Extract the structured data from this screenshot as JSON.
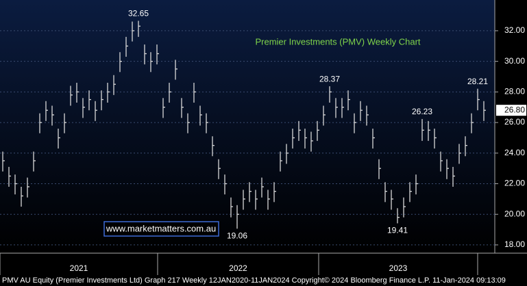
{
  "chart_data": {
    "type": "hlc",
    "title": "Premier Investments (PMV) Weekly Chart",
    "watermark": "www.marketmatters.com.au",
    "footer": "PMV AU Equity (Premier Investments Ltd) Graph 217  Weekly 12JAN2020-11JAN2024 Copyright© 2024 Bloomberg Finance L.P. 11-Jan-2024 09:13:09",
    "x_labels": [
      "2021",
      "2022",
      "2023"
    ],
    "color": "#d9d9d9",
    "ylim": [
      17.46,
      34.01
    ],
    "yticks": [
      {
        "value": 18,
        "label": "18.00"
      },
      {
        "value": 20,
        "label": "20.00"
      },
      {
        "value": 22,
        "label": "22.00"
      },
      {
        "value": 24,
        "label": "24.00"
      },
      {
        "value": 26,
        "label": "26.00"
      },
      {
        "value": 28,
        "label": "28.00"
      },
      {
        "value": 30,
        "label": "30.00"
      },
      {
        "value": 32,
        "label": "32.00"
      }
    ],
    "grid": true,
    "last_price": {
      "value": 26.8,
      "label": "26.80"
    },
    "annotations": [
      32.65,
      19.06,
      28.37,
      19.41,
      26.23,
      28.21
    ],
    "high": [
      24.1,
      23.1,
      22.6,
      21.8,
      22.4,
      24.1,
      26.6,
      27.4,
      27.1,
      25.6,
      26.6,
      28.4,
      28.6,
      27.6,
      28.1,
      27.4,
      28.1,
      28.6,
      29.1,
      30.6,
      31.6,
      32.6,
      32.65,
      31.1,
      30.6,
      31.1,
      27.6,
      28.6,
      30.1,
      27.6,
      26.6,
      28.6,
      27.1,
      26.6,
      25.1,
      23.6,
      22.6,
      21.1,
      20.6,
      21.6,
      22.1,
      21.6,
      22.4,
      21.6,
      22.1,
      24.1,
      24.6,
      25.6,
      26.1,
      25.6,
      25.4,
      26.1,
      27.1,
      28.37,
      27.6,
      27.6,
      28.1,
      26.6,
      27.4,
      27.1,
      25.6,
      23.6,
      22.1,
      21.6,
      20.4,
      21.1,
      22.1,
      22.6,
      26.23,
      26.1,
      25.6,
      24.1,
      23.6,
      23.1,
      24.6,
      25.1,
      26.6,
      28.21,
      27.4
    ],
    "low": [
      22.8,
      21.8,
      21.3,
      20.5,
      21.1,
      22.8,
      25.3,
      26.1,
      25.8,
      24.3,
      25.3,
      27.1,
      27.3,
      26.3,
      26.8,
      26.1,
      26.8,
      27.3,
      27.8,
      29.3,
      30.3,
      31.3,
      31.6,
      29.8,
      29.3,
      29.8,
      26.3,
      27.3,
      28.8,
      26.3,
      25.3,
      27.3,
      25.8,
      25.3,
      23.8,
      22.3,
      21.3,
      19.8,
      19.06,
      20.3,
      20.8,
      20.3,
      21.1,
      20.3,
      20.8,
      22.8,
      23.3,
      24.3,
      24.8,
      24.3,
      24.1,
      24.8,
      25.8,
      27.3,
      26.3,
      26.3,
      26.8,
      25.3,
      26.1,
      25.8,
      24.3,
      22.3,
      20.8,
      20.3,
      19.41,
      19.8,
      20.8,
      21.3,
      24.8,
      24.8,
      24.3,
      22.8,
      22.3,
      21.8,
      23.3,
      23.8,
      25.3,
      26.8,
      26.1
    ],
    "close": [
      23.5,
      22.5,
      22,
      21.2,
      21.8,
      23.5,
      26,
      26.8,
      26.5,
      25,
      26,
      27.8,
      28,
      27,
      27.5,
      26.8,
      27.5,
      28,
      28.5,
      30,
      31,
      32,
      32.3,
      30.5,
      30,
      30.5,
      27,
      28,
      29.5,
      27,
      26,
      28,
      26.5,
      26,
      24.5,
      23,
      22,
      20.5,
      20,
      21,
      21.5,
      21,
      21.8,
      21,
      21.5,
      23.5,
      24,
      25,
      25.5,
      25,
      24.8,
      25.5,
      26.5,
      28,
      27,
      27,
      27.5,
      26,
      26.8,
      26.5,
      25,
      23,
      21.5,
      21,
      19.8,
      20.5,
      21.5,
      22,
      25.5,
      25.5,
      25,
      23.5,
      23,
      22.5,
      24,
      24.5,
      26,
      27.5,
      26.8
    ]
  }
}
